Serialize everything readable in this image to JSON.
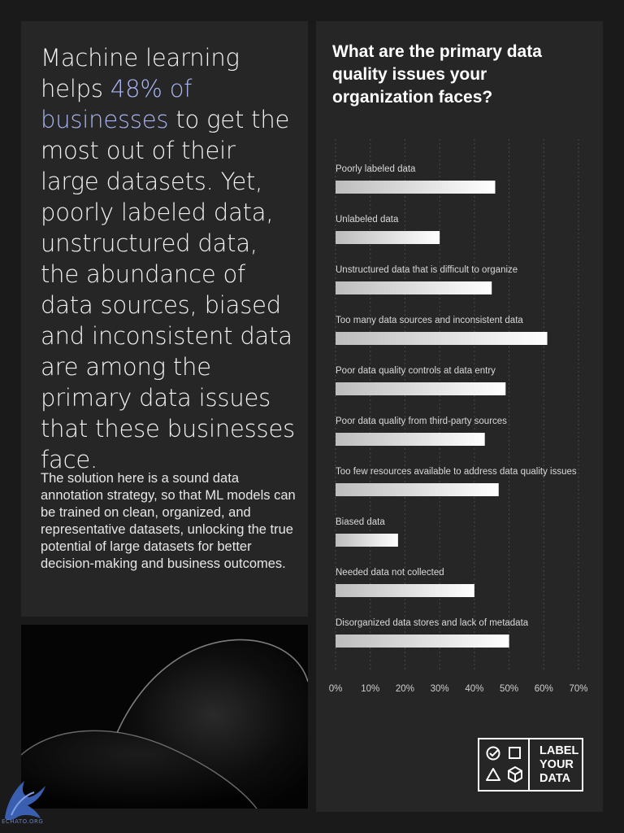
{
  "headline": {
    "pre": "Machine learning helps ",
    "highlight": "48% of businesses",
    "post": " to get the most out of their large datasets. Yet, poorly labeled data, unstructured data, the abundance of data sources, biased and inconsistent data are among the primary data issues that these businesses face."
  },
  "body_text": "The solution here is a sound data annotation strategy, so that ML models can be trained on clean, organized, and representative datasets, unlocking the true potential of large datasets for better decision-making and business outcomes.",
  "logo": {
    "line1": "LABEL",
    "line2": "YOUR",
    "line3": "DATA"
  },
  "watermark_text": "ECHATO.ORG",
  "colors": {
    "highlight": "#a9b4f0",
    "panel": "#262626",
    "background": "#1a1a1a"
  },
  "chart_data": {
    "type": "bar",
    "orientation": "horizontal",
    "title": "What are the primary data quality issues your organization faces?",
    "categories": [
      "Poorly labeled data",
      "Unlabeled data",
      "Unstructured data that is difficult to organize",
      "Too many data sources and inconsistent data",
      "Poor data quality controls at data entry",
      "Poor data quality from third-party sources",
      "Too few resources available to address data quality issues",
      "Biased data",
      "Needed data not collected",
      "Disorganized data stores and lack of metadata"
    ],
    "values": [
      46,
      30,
      45,
      61,
      49,
      43,
      47,
      18,
      40,
      50
    ],
    "xlim": [
      0,
      70
    ],
    "xticks": [
      "0%",
      "10%",
      "20%",
      "30%",
      "40%",
      "50%",
      "60%",
      "70%"
    ],
    "grid": true
  }
}
